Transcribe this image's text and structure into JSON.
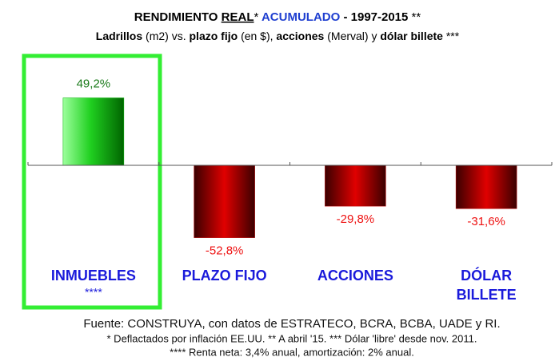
{
  "chart_data": {
    "type": "bar",
    "title_parts": [
      "RENDIMIENTO",
      "REAL",
      "*",
      "ACUMULADO",
      "- 1997-2015",
      "**"
    ],
    "subtitle_parts": [
      "Ladrillos",
      "(m2) vs.",
      "plazo fijo",
      "(en $),",
      "acciones",
      "(Merval) y",
      "dólar billete",
      "***"
    ],
    "categories": [
      "INMUEBLES",
      "PLAZO FIJO",
      "ACCIONES",
      "DÓLAR BILLETE"
    ],
    "values": [
      49.2,
      -52.8,
      -29.8,
      -31.6
    ],
    "value_labels": [
      "49,2%",
      "-52,8%",
      "-29,8%",
      "-31,6%"
    ],
    "colors": [
      "#00b000",
      "#c00000",
      "#c00000",
      "#c00000"
    ],
    "highlight_note": "****",
    "ylim": [
      -60,
      60
    ],
    "footnotes": [
      "Fuente: CONSTRUYA, con datos de ESTRATECO, BCRA, BCBA, UADE y RI.",
      "* Deflactados por inflación EE.UU. ** A abril '15. *** Dólar 'libre' desde nov. 2011.",
      "**** Renta neta: 3,4% anual, amortización: 2% anual."
    ]
  }
}
